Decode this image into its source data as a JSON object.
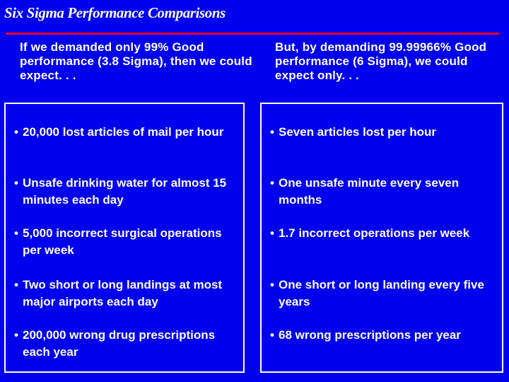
{
  "title": "Six Sigma Performance Comparisons",
  "left": {
    "header": "If we demanded only 99% Good performance (3.8 Sigma), then we could expect. . .",
    "items": [
      "20,000 lost articles of mail per hour",
      "Unsafe drinking water for almost 15 minutes each day",
      "5,000 incorrect surgical operations per week",
      "Two short or long landings at most major airports each day",
      "200,000 wrong drug prescriptions each year"
    ]
  },
  "right": {
    "header": "But, by demanding 99.99966% Good performance (6 Sigma), we could expect only. . .",
    "items": [
      "Seven articles lost per hour",
      "One unsafe minute every seven months",
      "1.7 incorrect operations per week",
      "One short or long landing every five years",
      "68 wrong prescriptions per year"
    ]
  },
  "bullet": "•",
  "colors": {
    "background": "#0000ee",
    "rule": "#e8002a",
    "text": "#ffffff"
  }
}
